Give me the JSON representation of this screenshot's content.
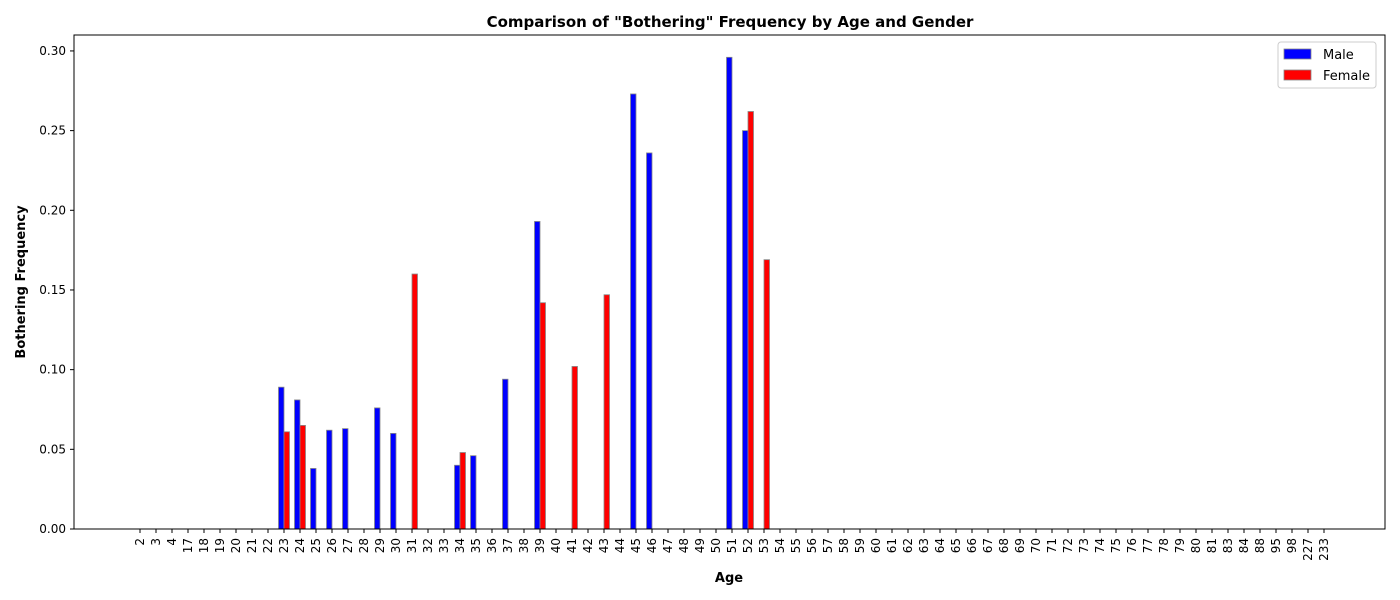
{
  "chart_data": {
    "type": "bar",
    "title": "Comparison of \"Bothering\" Frequency by Age and Gender",
    "xlabel": "Age",
    "ylabel": "Bothering Frequency",
    "ylim": [
      0,
      0.31
    ],
    "yticks": [
      0.0,
      0.05,
      0.1,
      0.15,
      0.2,
      0.25,
      0.3
    ],
    "ytick_labels": [
      "0.00",
      "0.05",
      "0.10",
      "0.15",
      "0.20",
      "0.25",
      "0.30"
    ],
    "grid": false,
    "legend_position": "top-right",
    "categories": [
      "2",
      "3",
      "4",
      "17",
      "18",
      "19",
      "20",
      "21",
      "22",
      "23",
      "24",
      "25",
      "26",
      "27",
      "28",
      "29",
      "30",
      "31",
      "32",
      "33",
      "34",
      "35",
      "36",
      "37",
      "38",
      "39",
      "40",
      "41",
      "42",
      "43",
      "44",
      "45",
      "46",
      "47",
      "48",
      "49",
      "50",
      "51",
      "52",
      "53",
      "54",
      "55",
      "56",
      "57",
      "58",
      "59",
      "60",
      "61",
      "62",
      "63",
      "64",
      "65",
      "66",
      "67",
      "68",
      "69",
      "70",
      "71",
      "72",
      "73",
      "74",
      "75",
      "76",
      "77",
      "78",
      "79",
      "80",
      "81",
      "83",
      "84",
      "88",
      "95",
      "98",
      "227",
      "233"
    ],
    "series": [
      {
        "name": "Male",
        "color": "#0000ff",
        "values": [
          0,
          0,
          0,
          0,
          0,
          0,
          0,
          0,
          0,
          0.089,
          0.081,
          0.038,
          0.062,
          0.063,
          0,
          0.076,
          0.06,
          0,
          0,
          0,
          0.04,
          0.046,
          0,
          0.094,
          0,
          0.193,
          0,
          0,
          0,
          0,
          0,
          0.273,
          0.236,
          0,
          0,
          0,
          0,
          0.296,
          0.25,
          0,
          0,
          0,
          0,
          0,
          0,
          0,
          0,
          0,
          0,
          0,
          0,
          0,
          0,
          0,
          0,
          0,
          0,
          0,
          0,
          0,
          0,
          0,
          0,
          0,
          0,
          0,
          0,
          0,
          0,
          0,
          0,
          0,
          0,
          0,
          0
        ]
      },
      {
        "name": "Female",
        "color": "#ff0000",
        "values": [
          0,
          0,
          0,
          0,
          0,
          0,
          0,
          0,
          0,
          0.061,
          0.065,
          0,
          0,
          0,
          0,
          0,
          0,
          0.16,
          0,
          0,
          0.048,
          0,
          0,
          0,
          0,
          0.142,
          0,
          0.102,
          0,
          0.147,
          0,
          0,
          0,
          0,
          0,
          0,
          0,
          0,
          0.262,
          0.169,
          0,
          0,
          0,
          0,
          0,
          0,
          0,
          0,
          0,
          0,
          0,
          0,
          0,
          0,
          0,
          0,
          0,
          0,
          0,
          0,
          0,
          0,
          0,
          0,
          0,
          0,
          0,
          0,
          0,
          0,
          0,
          0,
          0,
          0,
          0
        ]
      }
    ]
  }
}
